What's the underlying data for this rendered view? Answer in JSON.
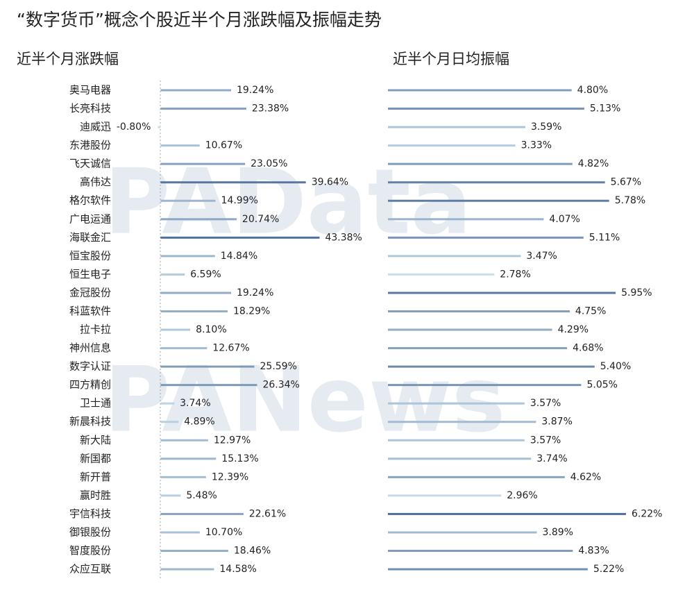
{
  "title": "“数字货币”概念个股近半个月涨跌幅及振幅走势",
  "watermarks": [
    "PAData",
    "PANews"
  ],
  "chart_data": [
    {
      "type": "bar",
      "orientation": "horizontal",
      "subtitle": "近半个月涨跌幅",
      "categories": [
        "奥马电器",
        "长亮科技",
        "迪威迅",
        "东港股份",
        "飞天诚信",
        "高伟达",
        "格尔软件",
        "广电运通",
        "海联金汇",
        "恒宝股份",
        "恒生电子",
        "金冠股份",
        "科蓝软件",
        "拉卡拉",
        "神州信息",
        "数字认证",
        "四方精创",
        "卫士通",
        "新晨科技",
        "新大陆",
        "新国都",
        "新开普",
        "赢时胜",
        "宇信科技",
        "御银股份",
        "智度股份",
        "众应互联"
      ],
      "values": [
        19.24,
        23.38,
        -0.8,
        10.67,
        23.05,
        39.64,
        14.99,
        20.74,
        43.38,
        14.84,
        6.59,
        19.24,
        18.29,
        8.1,
        12.67,
        25.59,
        26.34,
        3.74,
        4.89,
        12.97,
        15.13,
        12.39,
        5.48,
        22.61,
        10.7,
        18.46,
        14.58
      ],
      "value_labels": [
        "19.24%",
        "23.38%",
        "-0.80%",
        "10.67%",
        "23.05%",
        "39.64%",
        "14.99%",
        "20.74%",
        "43.38%",
        "14.84%",
        "6.59%",
        "19.24%",
        "18.29%",
        "8.10%",
        "12.67%",
        "25.59%",
        "26.34%",
        "3.74%",
        "4.89%",
        "12.97%",
        "15.13%",
        "12.39%",
        "5.48%",
        "22.61%",
        "10.70%",
        "18.46%",
        "14.58%"
      ],
      "xlim": [
        -5,
        45
      ],
      "color_range": [
        "#c9deec",
        "#4d6f99"
      ]
    },
    {
      "type": "bar",
      "orientation": "horizontal",
      "subtitle": "近半个月日均振幅",
      "values": [
        4.8,
        5.13,
        3.59,
        3.33,
        4.82,
        5.67,
        5.78,
        4.07,
        5.11,
        3.47,
        2.78,
        5.95,
        4.75,
        4.29,
        4.68,
        5.4,
        5.05,
        3.57,
        3.87,
        3.57,
        3.74,
        4.62,
        2.96,
        6.22,
        3.89,
        4.83,
        5.22
      ],
      "value_labels": [
        "4.80%",
        "5.13%",
        "3.59%",
        "3.33%",
        "4.82%",
        "5.67%",
        "5.78%",
        "4.07%",
        "5.11%",
        "3.47%",
        "2.78%",
        "5.95%",
        "4.75%",
        "4.29%",
        "4.68%",
        "5.40%",
        "5.05%",
        "3.57%",
        "3.87%",
        "3.57%",
        "3.74%",
        "4.62%",
        "2.96%",
        "6.22%",
        "3.89%",
        "4.83%",
        "5.22%"
      ],
      "xlim": [
        0,
        7
      ],
      "color_range": [
        "#c9deec",
        "#4d6f99"
      ]
    }
  ]
}
